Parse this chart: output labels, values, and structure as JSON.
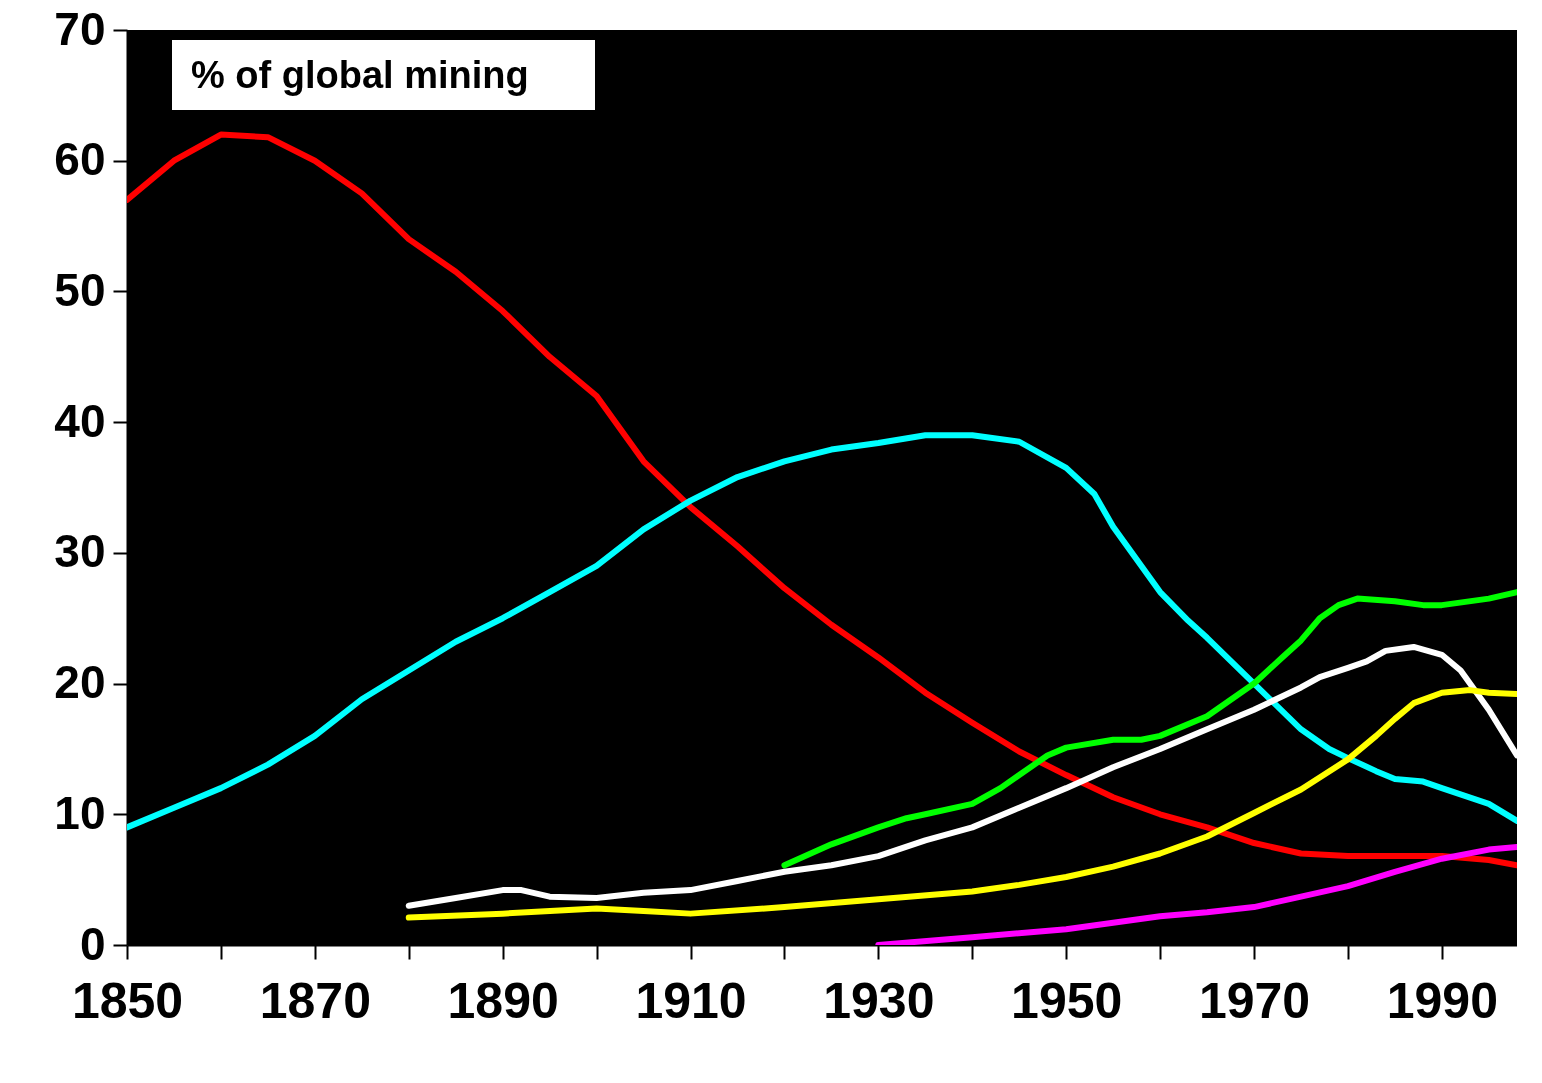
{
  "chart_data": {
    "type": "line",
    "annotations": [
      "% of global mining"
    ],
    "xlim": [
      1850,
      1998
    ],
    "xticks": [
      1850,
      {
        "value": 1860,
        "label": null
      },
      1870,
      {
        "value": 1880,
        "label": null
      },
      1890,
      {
        "value": 1900,
        "label": null
      },
      1910,
      {
        "value": 1920,
        "label": null
      },
      1930,
      {
        "value": 1940,
        "label": null
      },
      1950,
      {
        "value": 1960,
        "label": null
      },
      1970,
      {
        "value": 1980,
        "label": null
      },
      1990
    ],
    "ylim": [
      0,
      70
    ],
    "yticks": [
      0,
      10,
      20,
      30,
      40,
      50,
      60,
      70
    ],
    "grid": false,
    "line_style": "solid",
    "marker": "none",
    "series": [
      {
        "color": "#ff0000",
        "x": [
          1850,
          1855,
          1860,
          1865,
          1870,
          1875,
          1880,
          1885,
          1890,
          1895,
          1900,
          1905,
          1910,
          1915,
          1920,
          1925,
          1930,
          1935,
          1940,
          1945,
          1950,
          1955,
          1960,
          1965,
          1970,
          1975,
          1980,
          1985,
          1990,
          1995,
          1998
        ],
        "values": [
          57,
          60,
          62,
          61.8,
          60,
          57.5,
          54,
          51.5,
          48.5,
          45,
          42,
          37,
          33.5,
          30.5,
          27.3,
          24.5,
          22,
          19.3,
          17,
          14.8,
          13,
          11.3,
          10,
          9,
          7.8,
          7,
          6.8,
          6.8,
          6.8,
          6.5,
          6.1
        ]
      },
      {
        "color": "#00ffff",
        "x": [
          1850,
          1855,
          1860,
          1865,
          1870,
          1875,
          1880,
          1885,
          1890,
          1895,
          1900,
          1905,
          1910,
          1915,
          1920,
          1925,
          1930,
          1935,
          1940,
          1945,
          1950,
          1953,
          1955,
          1960,
          1963,
          1965,
          1970,
          1975,
          1978,
          1980,
          1983,
          1985,
          1988,
          1990,
          1995,
          1998
        ],
        "values": [
          9,
          10.5,
          12,
          13.8,
          16,
          18.8,
          21,
          23.2,
          25,
          27,
          29,
          31.8,
          34,
          35.8,
          37,
          37.9,
          38.4,
          39,
          39,
          38.5,
          36.5,
          34.5,
          32,
          27,
          24.8,
          23.5,
          20,
          16.5,
          15,
          14.3,
          13.3,
          12.7,
          12.5,
          12,
          10.8,
          9.5
        ]
      },
      {
        "color": "#00ff00",
        "x": [
          1920,
          1925,
          1930,
          1933,
          1935,
          1940,
          1943,
          1945,
          1948,
          1950,
          1955,
          1958,
          1960,
          1965,
          1970,
          1973,
          1975,
          1977,
          1979,
          1981,
          1985,
          1988,
          1990,
          1995,
          1998
        ],
        "values": [
          6.1,
          7.7,
          9,
          9.7,
          10,
          10.8,
          12,
          13,
          14.5,
          15.1,
          15.7,
          15.7,
          16,
          17.5,
          20,
          22,
          23.3,
          25,
          26,
          26.5,
          26.3,
          26,
          26,
          26.5,
          27
        ]
      },
      {
        "color": "#ffffff",
        "x": [
          1880,
          1885,
          1890,
          1892,
          1895,
          1900,
          1905,
          1910,
          1915,
          1920,
          1925,
          1930,
          1935,
          1940,
          1945,
          1950,
          1955,
          1960,
          1965,
          1970,
          1975,
          1977,
          1980,
          1982,
          1984,
          1987,
          1990,
          1992,
          1995,
          1998
        ],
        "values": [
          3,
          3.6,
          4.2,
          4.2,
          3.7,
          3.6,
          4,
          4.2,
          4.9,
          5.6,
          6.1,
          6.8,
          8,
          9,
          10.5,
          12,
          13.6,
          15,
          16.5,
          18,
          19.7,
          20.5,
          21.2,
          21.7,
          22.5,
          22.8,
          22.2,
          21,
          18,
          14.5
        ]
      },
      {
        "color": "#ffff00",
        "x": [
          1880,
          1890,
          1900,
          1905,
          1910,
          1920,
          1930,
          1940,
          1945,
          1950,
          1955,
          1960,
          1965,
          1970,
          1975,
          1980,
          1983,
          1985,
          1987,
          1990,
          1993,
          1995,
          1998
        ],
        "values": [
          2.1,
          2.4,
          2.8,
          2.6,
          2.4,
          2.9,
          3.5,
          4.1,
          4.6,
          5.2,
          6,
          7,
          8.3,
          10.1,
          11.9,
          14.2,
          16,
          17.3,
          18.5,
          19.3,
          19.5,
          19.3,
          19.2
        ]
      },
      {
        "color": "#ff00ff",
        "x": [
          1930,
          1940,
          1950,
          1955,
          1960,
          1965,
          1970,
          1975,
          1980,
          1985,
          1990,
          1995,
          1998
        ],
        "values": [
          0,
          0.6,
          1.2,
          1.7,
          2.2,
          2.5,
          2.9,
          3.7,
          4.5,
          5.6,
          6.6,
          7.3,
          7.5
        ]
      }
    ]
  }
}
